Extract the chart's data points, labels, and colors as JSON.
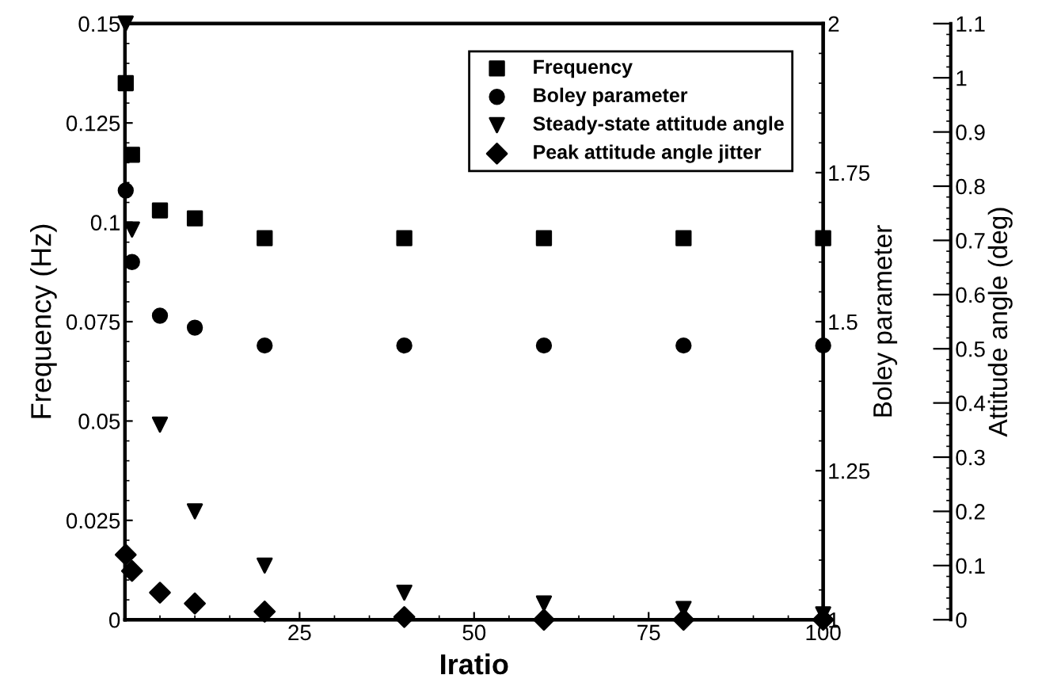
{
  "chart_data": {
    "type": "scatter",
    "xlabel": "Iratio",
    "ylabel": "Frequency (Hz)",
    "y2label": "Boley parameter",
    "y3label": "Attitude angle (deg)",
    "x": [
      0.1,
      1,
      5,
      10,
      20,
      40,
      60,
      80,
      100
    ],
    "xlim": [
      0,
      100
    ],
    "xticks": [
      {
        "value": 0,
        "label": null
      },
      25,
      50,
      75,
      100
    ],
    "ylim": [
      0,
      0.15
    ],
    "yticks": [
      0,
      0.025,
      0.05,
      0.075,
      0.1,
      0.125,
      0.15
    ],
    "y2lim": [
      1,
      2
    ],
    "y2ticks": [
      1,
      1.25,
      1.5,
      1.75,
      2
    ],
    "y3lim": [
      0,
      1.1
    ],
    "y3ticks": [
      0,
      0.1,
      0.2,
      0.3,
      0.4,
      0.5,
      0.6,
      0.7,
      0.8,
      0.9,
      1,
      1.1
    ],
    "legend": "top right",
    "grid": false,
    "series": [
      {
        "name": "Frequency",
        "color": "#000000",
        "marker": "square",
        "values": [
          0.135,
          0.117,
          0.103,
          0.101,
          0.096,
          0.096,
          0.096,
          0.096,
          0.096
        ]
      },
      {
        "name": "Boley parameter",
        "color": "#000000",
        "marker": "circle",
        "axis": "y2",
        "values": [
          1.72,
          1.6,
          1.51,
          1.49,
          1.46,
          1.46,
          1.46,
          1.46,
          1.46
        ]
      },
      {
        "name": "Steady-state attitude angle",
        "color": "#000000",
        "marker": "triangle",
        "axis": "y3",
        "values": [
          1.1,
          0.72,
          0.36,
          0.2,
          0.1,
          0.05,
          0.03,
          0.02,
          0.01
        ]
      },
      {
        "name": "Peak attitude angle jitter",
        "color": "#000000",
        "marker": "diamond",
        "axis": "y3",
        "values": [
          0.12,
          0.09,
          0.05,
          0.03,
          0.015,
          0.005,
          0,
          0,
          0
        ]
      }
    ]
  }
}
